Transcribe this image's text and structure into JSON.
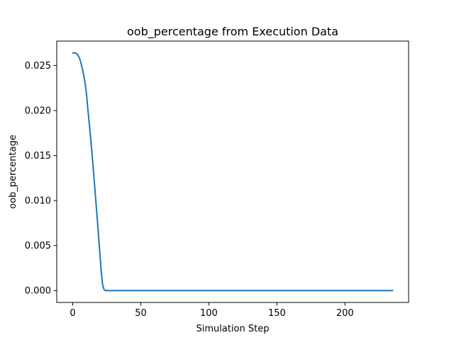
{
  "chart_data": {
    "type": "line",
    "title": "oob_percentage from Execution Data",
    "xlabel": "Simulation Step",
    "ylabel": "oob_percentage",
    "xlim": [
      -11.75,
      246.75
    ],
    "ylim": [
      -0.00132,
      0.02772
    ],
    "xticks": [
      0,
      50,
      100,
      150,
      200
    ],
    "xtick_labels": [
      "0",
      "50",
      "100",
      "150",
      "200"
    ],
    "yticks": [
      0.0,
      0.005,
      0.01,
      0.015,
      0.02,
      0.025
    ],
    "ytick_labels": [
      "0.000",
      "0.005",
      "0.010",
      "0.015",
      "0.020",
      "0.025"
    ],
    "grid": false,
    "series": [
      {
        "color": "#1f77b4",
        "x": [
          0,
          1,
          2,
          3,
          4,
          5,
          6,
          7,
          8,
          9,
          10,
          11,
          12,
          13,
          14,
          15,
          16,
          17,
          18,
          19,
          20,
          21,
          22,
          23,
          24,
          25,
          30,
          50,
          100,
          150,
          200,
          235
        ],
        "y": [
          0.0264,
          0.0264,
          0.0264,
          0.0263,
          0.0261,
          0.0258,
          0.0253,
          0.0247,
          0.024,
          0.0231,
          0.022,
          0.0203,
          0.0188,
          0.0172,
          0.0155,
          0.0137,
          0.0118,
          0.0099,
          0.008,
          0.006,
          0.004,
          0.002,
          0.0006,
          0.0001,
          0.0,
          0.0,
          0.0,
          0.0,
          0.0,
          0.0,
          0.0,
          0.0
        ]
      }
    ]
  }
}
